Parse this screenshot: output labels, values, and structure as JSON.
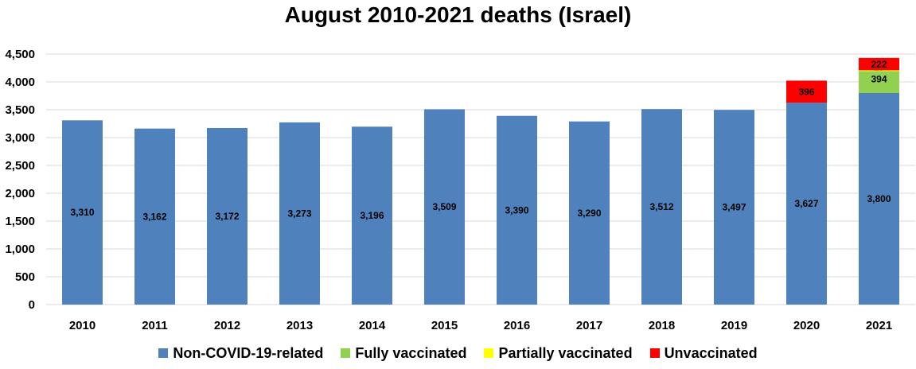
{
  "chart_data": {
    "type": "bar",
    "stacked": true,
    "title": "August 2010-2021 deaths (Israel)",
    "xlabel": "",
    "ylabel": "",
    "categories": [
      "2010",
      "2011",
      "2012",
      "2013",
      "2014",
      "2015",
      "2016",
      "2017",
      "2018",
      "2019",
      "2020",
      "2021"
    ],
    "series": [
      {
        "name": "Non-COVID-19-related",
        "color": "#4f81bd",
        "values": [
          3310,
          3162,
          3172,
          3273,
          3196,
          3509,
          3390,
          3290,
          3512,
          3497,
          3627,
          3800
        ]
      },
      {
        "name": "Fully vaccinated",
        "color": "#92d050",
        "values": [
          0,
          0,
          0,
          0,
          0,
          0,
          0,
          0,
          0,
          0,
          0,
          394
        ]
      },
      {
        "name": "Partially vaccinated",
        "color": "#ffff00",
        "values": [
          0,
          0,
          0,
          0,
          0,
          0,
          0,
          0,
          0,
          0,
          0,
          15
        ]
      },
      {
        "name": "Unvaccinated",
        "color": "#ff0000",
        "values": [
          0,
          0,
          0,
          0,
          0,
          0,
          0,
          0,
          0,
          0,
          396,
          222
        ]
      }
    ],
    "ylim": [
      0,
      4500
    ],
    "yticks": [
      0,
      500,
      1000,
      1500,
      2000,
      2500,
      3000,
      3500,
      4000,
      4500
    ],
    "grid": true,
    "legend": "bottom"
  }
}
